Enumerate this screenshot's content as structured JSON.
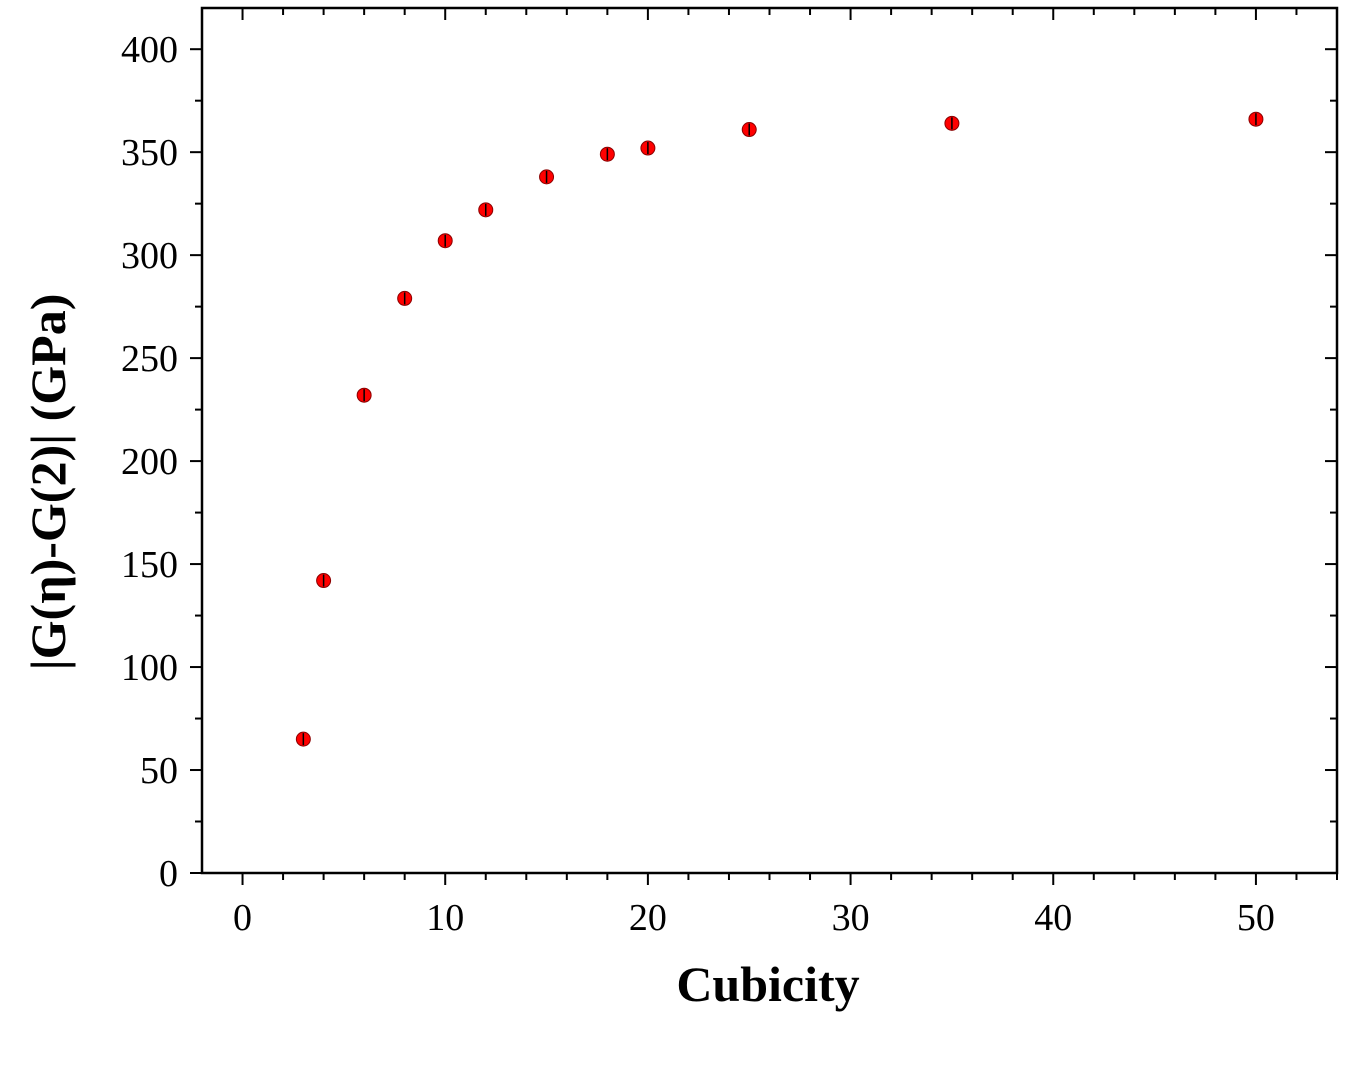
{
  "chart_data": {
    "type": "scatter",
    "xlabel": "Cubicity",
    "ylabel": "|G(η)-G(2)| (GPa)",
    "xlim": [
      -2,
      54
    ],
    "ylim": [
      0,
      420
    ],
    "xticks": [
      0,
      10,
      20,
      30,
      40,
      50
    ],
    "yticks": [
      0,
      50,
      100,
      150,
      200,
      250,
      300,
      350,
      400
    ],
    "grid": false,
    "legend": "none",
    "marker_color": "#ff0000",
    "series": [
      {
        "x": [
          3,
          4,
          6,
          8,
          10,
          12,
          15,
          18,
          20,
          25,
          35,
          50
        ],
        "y": [
          65,
          142,
          232,
          279,
          307,
          322,
          338,
          349,
          352,
          361,
          364,
          366
        ]
      }
    ]
  }
}
